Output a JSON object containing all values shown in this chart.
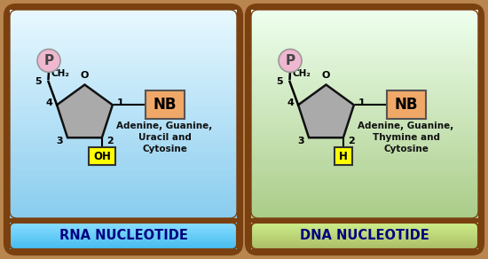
{
  "fig_width": 5.5,
  "fig_height": 2.92,
  "dpi": 100,
  "outer_bg": "#b8864e",
  "left_panel": {
    "border_color": "#7a4010",
    "title": "RNA NUCLEOTIDE",
    "title_bg_top": "#88ddff",
    "title_bg_bot": "#44bbee",
    "title_color": "#000080",
    "content_bg_top": "#e8f8ff",
    "content_bg_bot": "#88ccee",
    "phosphate_label": "P",
    "phosphate_color": "#f0b8d0",
    "pentagon_fill": "#aaaaaa",
    "pentagon_edge": "#111111",
    "nb_box_color": "#f0a868",
    "nb_box_edge": "#555555",
    "nb_text": "NB",
    "oh_box_color": "#ffff00",
    "oh_box_edge": "#333333",
    "oh_text": "OH",
    "nucleotides_text": "Adenine, Guanine,\nUracil and\nCytosine",
    "ch2_label": "CH₂",
    "o_label": "O"
  },
  "right_panel": {
    "border_color": "#7a4010",
    "title": "DNA NUCLEOTIDE",
    "title_bg_top": "#ccee88",
    "title_bg_bot": "#aabb66",
    "title_color": "#000080",
    "content_bg_top": "#eeffee",
    "content_bg_bot": "#aacc88",
    "phosphate_label": "P",
    "phosphate_color": "#f0b8d0",
    "pentagon_fill": "#aaaaaa",
    "pentagon_edge": "#111111",
    "nb_box_color": "#f0a868",
    "nb_box_edge": "#555555",
    "nb_text": "NB",
    "h_box_color": "#ffff00",
    "h_box_edge": "#333333",
    "h_text": "H",
    "nucleotides_text": "Adenine, Guanine,\nThymine and\nCytosine",
    "ch2_label": "CH₂",
    "o_label": "O"
  }
}
